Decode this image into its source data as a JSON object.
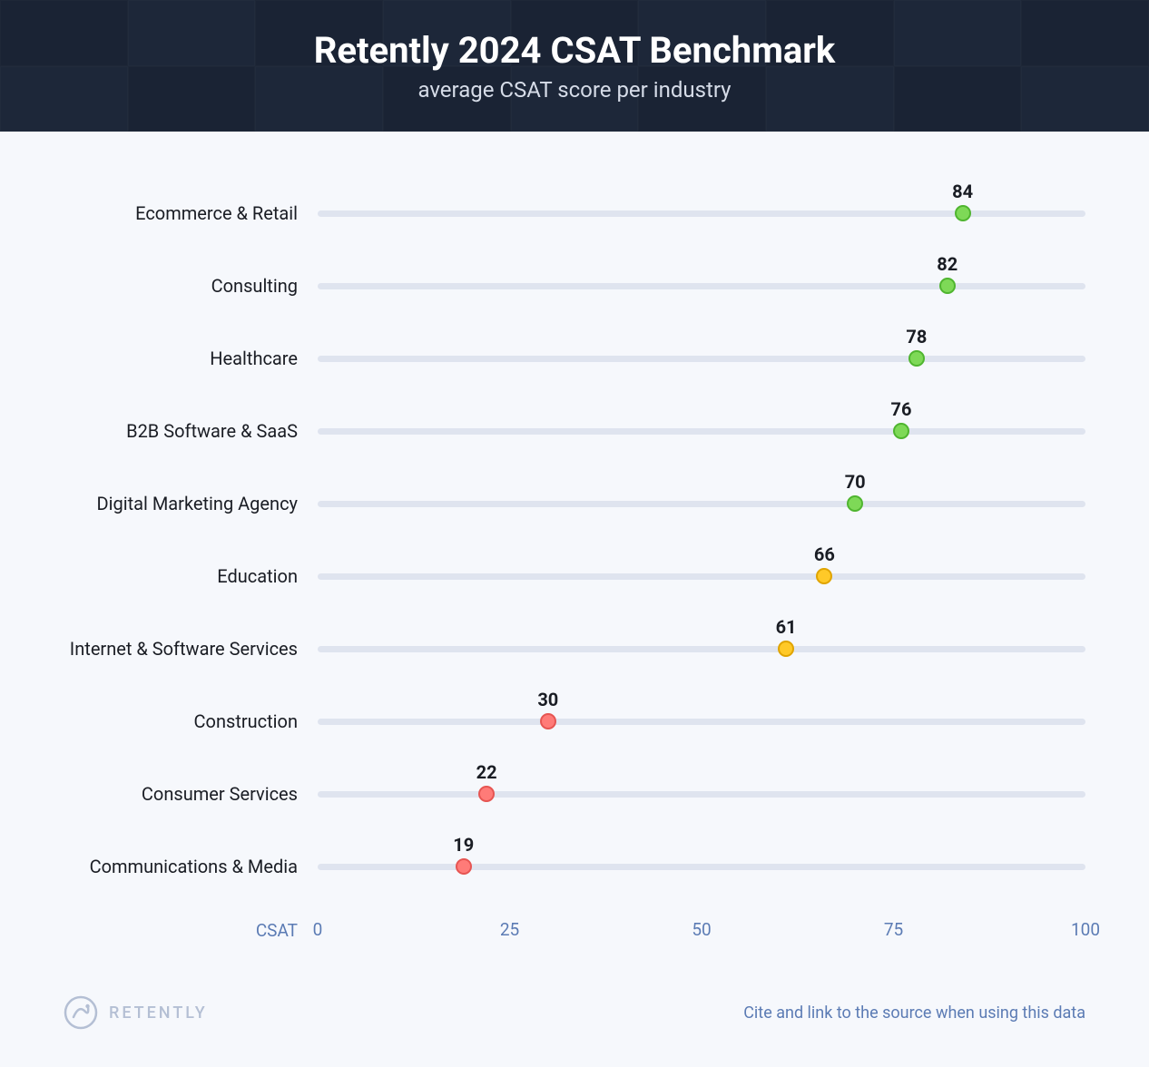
{
  "header": {
    "title": "Retently 2024 CSAT Benchmark",
    "subtitle": "average CSAT score per industry",
    "background_color": "#1d2739",
    "tile_alt_color": "#1a2334",
    "title_color": "#ffffff",
    "subtitle_color": "#d6dce8",
    "title_fontsize": 40,
    "subtitle_fontsize": 24
  },
  "chart": {
    "type": "dot-plot",
    "background_color": "#f6f8fc",
    "xmin": 0,
    "xmax": 100,
    "xticks": [
      0,
      25,
      50,
      75,
      100
    ],
    "axis_label": "CSAT",
    "axis_label_color": "#5b7bb4",
    "axis_tick_color": "#5b7bb4",
    "axis_fontsize": 19,
    "track_color": "#dfe4ef",
    "track_height": 7,
    "dot_radius": 9,
    "dot_border_width": 2,
    "row_label_fontsize": 20,
    "row_label_color": "#1a1d24",
    "value_label_fontsize": 20,
    "value_label_color": "#1a1d24",
    "colors": {
      "green_fill": "#7ed957",
      "green_border": "#4fb52f",
      "yellow_fill": "#ffc928",
      "yellow_border": "#e0a400",
      "red_fill": "#ff7b78",
      "red_border": "#e65552"
    },
    "rows": [
      {
        "label": "Ecommerce & Retail",
        "value": 84,
        "color": "green"
      },
      {
        "label": "Consulting",
        "value": 82,
        "color": "green"
      },
      {
        "label": "Healthcare",
        "value": 78,
        "color": "green"
      },
      {
        "label": "B2B Software & SaaS",
        "value": 76,
        "color": "green"
      },
      {
        "label": "Digital Marketing Agency",
        "value": 70,
        "color": "green"
      },
      {
        "label": "Education",
        "value": 66,
        "color": "yellow"
      },
      {
        "label": "Internet & Software Services",
        "value": 61,
        "color": "yellow"
      },
      {
        "label": "Construction",
        "value": 30,
        "color": "red"
      },
      {
        "label": "Consumer Services",
        "value": 22,
        "color": "red"
      },
      {
        "label": "Communications & Media",
        "value": 19,
        "color": "red"
      }
    ]
  },
  "footer": {
    "brand_name": "RETENTLY",
    "brand_color": "#b4bfd4",
    "citation": "Cite and link to the source when using this data",
    "citation_color": "#5b7bb4",
    "citation_fontsize": 18
  }
}
